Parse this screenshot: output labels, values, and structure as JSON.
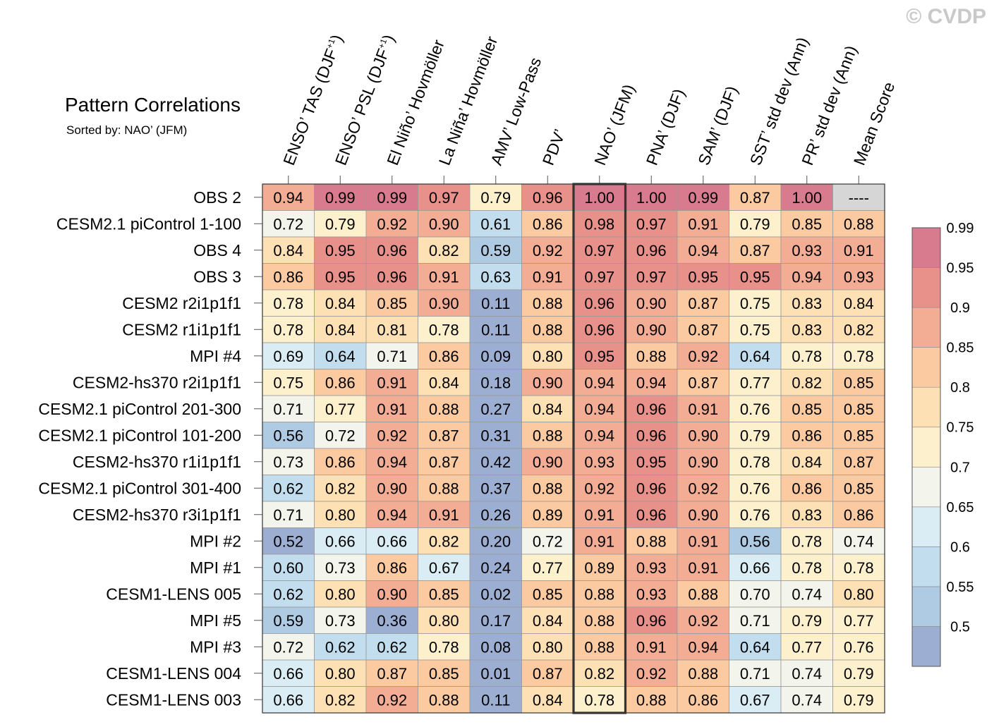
{
  "watermark": "© CVDP",
  "chart_data": {
    "type": "heatmap",
    "title": "Pattern Correlations",
    "subtitle": "Sorted by: NAO’ (JFM)",
    "columns": [
      {
        "main": "ENSO’ TAS (DJF",
        "sup": "+1",
        "tail": ")"
      },
      {
        "main": "ENSO’ PSL (DJF",
        "sup": "+1",
        "tail": ")"
      },
      {
        "main": "El Niño’ Hovmöller",
        "sup": "",
        "tail": ""
      },
      {
        "main": "La Niña’ Hovmöller",
        "sup": "",
        "tail": ""
      },
      {
        "main": "AMV’ Low-Pass",
        "sup": "",
        "tail": ""
      },
      {
        "main": "PDV’",
        "sup": "",
        "tail": ""
      },
      {
        "main": "NAO’ (JFM)",
        "sup": "",
        "tail": ""
      },
      {
        "main": "PNA’ (DJF)",
        "sup": "",
        "tail": ""
      },
      {
        "main": "SAM’ (DJF)",
        "sup": "",
        "tail": ""
      },
      {
        "main": "SST’ std dev (Ann)",
        "sup": "",
        "tail": ""
      },
      {
        "main": "PR’ std dev (Ann)",
        "sup": "",
        "tail": ""
      },
      {
        "main": "Mean Score",
        "sup": "",
        "tail": ""
      }
    ],
    "highlight_column": 6,
    "rows": [
      {
        "name": "OBS 2",
        "values": [
          "0.94",
          "0.99",
          "0.99",
          "0.97",
          "0.79",
          "0.96",
          "1.00",
          "1.00",
          "0.99",
          "0.87",
          "1.00",
          "----"
        ]
      },
      {
        "name": "CESM2.1 piControl 1-100",
        "values": [
          "0.72",
          "0.79",
          "0.92",
          "0.90",
          "0.61",
          "0.86",
          "0.98",
          "0.97",
          "0.91",
          "0.79",
          "0.85",
          "0.88"
        ]
      },
      {
        "name": "OBS 4",
        "values": [
          "0.84",
          "0.95",
          "0.96",
          "0.82",
          "0.59",
          "0.92",
          "0.97",
          "0.96",
          "0.94",
          "0.87",
          "0.93",
          "0.91"
        ]
      },
      {
        "name": "OBS 3",
        "values": [
          "0.86",
          "0.95",
          "0.96",
          "0.91",
          "0.63",
          "0.91",
          "0.97",
          "0.97",
          "0.95",
          "0.95",
          "0.94",
          "0.93"
        ]
      },
      {
        "name": "CESM2 r2i1p1f1",
        "values": [
          "0.78",
          "0.84",
          "0.85",
          "0.90",
          "0.11",
          "0.88",
          "0.96",
          "0.90",
          "0.87",
          "0.75",
          "0.83",
          "0.84"
        ]
      },
      {
        "name": "CESM2 r1i1p1f1",
        "values": [
          "0.78",
          "0.84",
          "0.81",
          "0.78",
          "0.11",
          "0.88",
          "0.96",
          "0.90",
          "0.87",
          "0.75",
          "0.83",
          "0.82"
        ]
      },
      {
        "name": "MPI #4",
        "values": [
          "0.69",
          "0.64",
          "0.71",
          "0.86",
          "0.09",
          "0.80",
          "0.95",
          "0.88",
          "0.92",
          "0.64",
          "0.78",
          "0.78"
        ]
      },
      {
        "name": "CESM2-hs370 r2i1p1f1",
        "values": [
          "0.75",
          "0.86",
          "0.91",
          "0.84",
          "0.18",
          "0.90",
          "0.94",
          "0.94",
          "0.87",
          "0.77",
          "0.82",
          "0.85"
        ]
      },
      {
        "name": "CESM2.1 piControl 201-300",
        "values": [
          "0.71",
          "0.77",
          "0.91",
          "0.88",
          "0.27",
          "0.84",
          "0.94",
          "0.96",
          "0.91",
          "0.76",
          "0.85",
          "0.85"
        ]
      },
      {
        "name": "CESM2.1 piControl 101-200",
        "values": [
          "0.56",
          "0.72",
          "0.92",
          "0.87",
          "0.31",
          "0.88",
          "0.94",
          "0.96",
          "0.90",
          "0.79",
          "0.86",
          "0.85"
        ]
      },
      {
        "name": "CESM2-hs370 r1i1p1f1",
        "values": [
          "0.73",
          "0.86",
          "0.94",
          "0.87",
          "0.42",
          "0.90",
          "0.93",
          "0.95",
          "0.90",
          "0.78",
          "0.84",
          "0.87"
        ]
      },
      {
        "name": "CESM2.1 piControl 301-400",
        "values": [
          "0.62",
          "0.82",
          "0.90",
          "0.88",
          "0.37",
          "0.88",
          "0.92",
          "0.96",
          "0.92",
          "0.76",
          "0.86",
          "0.85"
        ]
      },
      {
        "name": "CESM2-hs370 r3i1p1f1",
        "values": [
          "0.71",
          "0.80",
          "0.94",
          "0.91",
          "0.26",
          "0.89",
          "0.91",
          "0.96",
          "0.90",
          "0.76",
          "0.83",
          "0.86"
        ]
      },
      {
        "name": "MPI #2",
        "values": [
          "0.52",
          "0.66",
          "0.66",
          "0.82",
          "0.20",
          "0.72",
          "0.91",
          "0.88",
          "0.91",
          "0.56",
          "0.78",
          "0.74"
        ]
      },
      {
        "name": "MPI #1",
        "values": [
          "0.60",
          "0.73",
          "0.86",
          "0.67",
          "0.24",
          "0.77",
          "0.89",
          "0.93",
          "0.91",
          "0.66",
          "0.78",
          "0.78"
        ]
      },
      {
        "name": "CESM1-LENS 005",
        "values": [
          "0.62",
          "0.80",
          "0.90",
          "0.85",
          "0.02",
          "0.85",
          "0.88",
          "0.93",
          "0.88",
          "0.70",
          "0.74",
          "0.80"
        ]
      },
      {
        "name": "MPI #5",
        "values": [
          "0.59",
          "0.73",
          "0.36",
          "0.80",
          "0.17",
          "0.84",
          "0.88",
          "0.96",
          "0.92",
          "0.71",
          "0.79",
          "0.77"
        ]
      },
      {
        "name": "MPI #3",
        "values": [
          "0.72",
          "0.62",
          "0.62",
          "0.78",
          "0.08",
          "0.80",
          "0.88",
          "0.91",
          "0.94",
          "0.64",
          "0.77",
          "0.76"
        ]
      },
      {
        "name": "CESM1-LENS 004",
        "values": [
          "0.66",
          "0.80",
          "0.87",
          "0.85",
          "0.01",
          "0.87",
          "0.82",
          "0.92",
          "0.88",
          "0.71",
          "0.74",
          "0.79"
        ]
      },
      {
        "name": "CESM1-LENS 003",
        "values": [
          "0.66",
          "0.82",
          "0.92",
          "0.88",
          "0.11",
          "0.84",
          "0.78",
          "0.88",
          "0.86",
          "0.67",
          "0.74",
          "0.79"
        ]
      }
    ],
    "missing_color": "#d6d6d6",
    "colorbar": {
      "levels": [
        0.5,
        0.55,
        0.6,
        0.65,
        0.7,
        0.75,
        0.8,
        0.85,
        0.9,
        0.95,
        0.99
      ],
      "labels": [
        "0.5",
        "0.55",
        "0.6",
        "0.65",
        "0.7",
        "0.75",
        "0.8",
        "0.85",
        "0.9",
        "0.95",
        "0.99"
      ],
      "colors": [
        "#9daed3",
        "#aecbe3",
        "#c2dded",
        "#dbedf4",
        "#f3f4ec",
        "#fdf0cc",
        "#fde1b5",
        "#fbcaa1",
        "#f4ad95",
        "#e8918b",
        "#d87b8e"
      ]
    }
  }
}
